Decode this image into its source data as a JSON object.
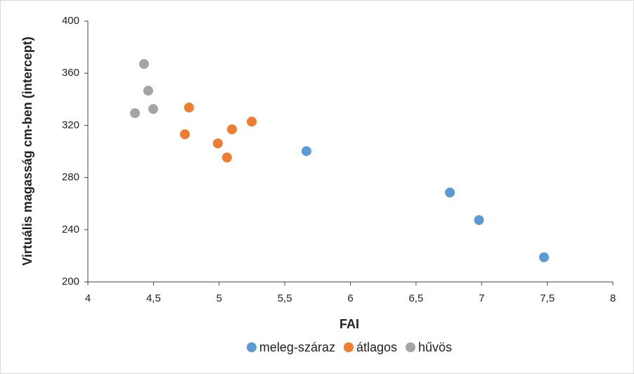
{
  "chart_data": {
    "type": "scatter",
    "x_label": "FAI",
    "y_label": "Virtuális magasság cm-ben (intercept)",
    "xlim": [
      4,
      8
    ],
    "xticks": [
      4,
      {
        "value": 4.5,
        "label": "4,5"
      },
      5,
      {
        "value": 5.5,
        "label": "5,5"
      },
      6,
      {
        "value": 6.5,
        "label": "6,5"
      },
      7,
      {
        "value": 7.5,
        "label": "7,5"
      },
      8
    ],
    "ylim": [
      200,
      400
    ],
    "yticks": [
      200,
      240,
      280,
      320,
      360,
      400
    ],
    "grid": false,
    "legend": "bottom",
    "series": [
      {
        "name": "meleg-száraz",
        "color": "#5b9bd5",
        "x": [
          5.665,
          6.758,
          6.98,
          7.475
        ],
        "values": [
          300.3,
          268.5,
          247.4,
          218.9
        ]
      },
      {
        "name": "átlagos",
        "color": "#ed7d31",
        "x": [
          4.771,
          4.739,
          5.248,
          5.098,
          4.99,
          5.06
        ],
        "values": [
          333.7,
          313.2,
          322.9,
          317,
          306.2,
          295.4
        ]
      },
      {
        "name": "hűvös",
        "color": "#a5a5a5",
        "x": [
          4.428,
          4.46,
          4.498,
          4.359
        ],
        "values": [
          367.1,
          346.6,
          332.6,
          329.4
        ]
      }
    ]
  }
}
